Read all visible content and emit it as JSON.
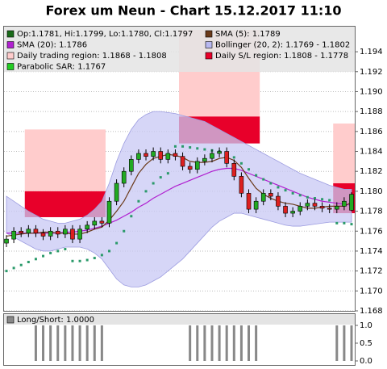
{
  "chart_data": {
    "type": "candlestick",
    "title": "Forex um Neun - Chart 15.12.2017 11:10",
    "legend": [
      {
        "label": "Op:1.1781, Hi:1.1799, Lo:1.1780, Cl:1.1797",
        "color": "#1a6b1a"
      },
      {
        "label": "SMA (5): 1.1789",
        "color": "#6b3a1a"
      },
      {
        "label": "SMA (20): 1.1786",
        "color": "#b020d0"
      },
      {
        "label": "Bollinger (20, 2): 1.1769 - 1.1802",
        "color": "#b8b8f0"
      },
      {
        "label": "Daily trading region: 1.1868 - 1.1808",
        "color": "#ffcccc"
      },
      {
        "label": "Daily S/L region: 1.1808 - 1.1778",
        "color": "#e8002a"
      },
      {
        "label": "Parabolic SAR: 1.1767",
        "color": "#22cc22"
      }
    ],
    "up_color": "#22aa22",
    "down_color": "#dd2020",
    "open": [
      1.1748,
      1.1752,
      1.176,
      1.1758,
      1.1762,
      1.1758,
      1.1755,
      1.176,
      1.1757,
      1.1762,
      1.1752,
      1.1762,
      1.1766,
      1.177,
      1.1768,
      1.179,
      1.1808,
      1.182,
      1.1832,
      1.1838,
      1.1835,
      1.184,
      1.1832,
      1.1838,
      1.1835,
      1.1825,
      1.1822,
      1.183,
      1.1833,
      1.1838,
      1.184,
      1.1828,
      1.1815,
      1.1798,
      1.1782,
      1.179,
      1.1798,
      1.1795,
      1.1785,
      1.1778,
      1.178,
      1.1785,
      1.1788,
      1.1785,
      1.1783,
      1.1782,
      1.1785,
      1.1781
    ],
    "high": [
      1.1756,
      1.1764,
      1.1764,
      1.1766,
      1.1766,
      1.1762,
      1.1764,
      1.1764,
      1.1766,
      1.1766,
      1.1766,
      1.177,
      1.1774,
      1.1774,
      1.1794,
      1.1812,
      1.1824,
      1.1836,
      1.1842,
      1.1842,
      1.1844,
      1.1844,
      1.1842,
      1.1842,
      1.1839,
      1.1829,
      1.1834,
      1.1837,
      1.1842,
      1.1844,
      1.1844,
      1.1832,
      1.1819,
      1.1802,
      1.1794,
      1.1802,
      1.1802,
      1.1799,
      1.1789,
      1.1784,
      1.1789,
      1.1792,
      1.1792,
      1.1789,
      1.1787,
      1.1789,
      1.1794,
      1.1799
    ],
    "low": [
      1.1744,
      1.1748,
      1.1754,
      1.1754,
      1.1754,
      1.1751,
      1.1751,
      1.1753,
      1.1753,
      1.1748,
      1.1748,
      1.1758,
      1.1762,
      1.1764,
      1.1764,
      1.1786,
      1.1804,
      1.1816,
      1.1828,
      1.1831,
      1.1831,
      1.1828,
      1.1828,
      1.1831,
      1.1821,
      1.1818,
      1.1818,
      1.1826,
      1.1829,
      1.1834,
      1.1824,
      1.1811,
      1.1794,
      1.1778,
      1.1778,
      1.1786,
      1.1791,
      1.1781,
      1.1774,
      1.1774,
      1.1776,
      1.1781,
      1.1781,
      1.1779,
      1.1778,
      1.1778,
      1.1781,
      1.178
    ],
    "close": [
      1.1752,
      1.176,
      1.1758,
      1.1762,
      1.1758,
      1.1755,
      1.176,
      1.1757,
      1.1762,
      1.1752,
      1.1762,
      1.1766,
      1.177,
      1.1768,
      1.179,
      1.1808,
      1.182,
      1.1832,
      1.1838,
      1.1835,
      1.184,
      1.1832,
      1.1838,
      1.1835,
      1.1825,
      1.1822,
      1.183,
      1.1833,
      1.1838,
      1.184,
      1.1828,
      1.1815,
      1.1798,
      1.1782,
      1.179,
      1.1798,
      1.1795,
      1.1785,
      1.1778,
      1.178,
      1.1785,
      1.1788,
      1.1785,
      1.1783,
      1.1782,
      1.1785,
      1.179,
      1.1797
    ],
    "sma5": {
      "color": "#6b3a1a",
      "values": [
        1.1755,
        1.1756,
        1.1757,
        1.1758,
        1.1758,
        1.1759,
        1.1759,
        1.1758,
        1.1758,
        1.1757,
        1.1757,
        1.1759,
        1.1762,
        1.1764,
        1.1771,
        1.178,
        1.179,
        1.1804,
        1.1818,
        1.1827,
        1.1833,
        1.1835,
        1.1837,
        1.1836,
        1.1834,
        1.183,
        1.1829,
        1.1829,
        1.183,
        1.1833,
        1.1834,
        1.1831,
        1.1824,
        1.1813,
        1.1803,
        1.1797,
        1.1793,
        1.179,
        1.1788,
        1.1787,
        1.1785,
        1.1783,
        1.1783,
        1.1784,
        1.1785,
        1.1785,
        1.1785,
        1.1789
      ]
    },
    "sma20": {
      "color": "#b020d0",
      "values": [
        1.1758,
        1.1758,
        1.1758,
        1.1758,
        1.1758,
        1.1758,
        1.1758,
        1.1758,
        1.1759,
        1.1759,
        1.176,
        1.1761,
        1.1763,
        1.1765,
        1.1768,
        1.1771,
        1.1775,
        1.1779,
        1.1784,
        1.1788,
        1.1793,
        1.1797,
        1.1801,
        1.1805,
        1.1808,
        1.1811,
        1.1814,
        1.1817,
        1.182,
        1.1822,
        1.1823,
        1.1823,
        1.1821,
        1.1818,
        1.1815,
        1.1812,
        1.1809,
        1.1806,
        1.1803,
        1.18,
        1.1797,
        1.1794,
        1.1792,
        1.179,
        1.1789,
        1.1788,
        1.1787,
        1.1786
      ]
    },
    "bollinger": {
      "color": "#c8c8f4",
      "upper": [
        1.1795,
        1.179,
        1.1785,
        1.178,
        1.1776,
        1.1772,
        1.177,
        1.1768,
        1.1768,
        1.177,
        1.1772,
        1.1776,
        1.1782,
        1.179,
        1.1808,
        1.183,
        1.1848,
        1.1862,
        1.1872,
        1.1877,
        1.188,
        1.188,
        1.1879,
        1.1878,
        1.1876,
        1.1874,
        1.1872,
        1.187,
        1.1866,
        1.1862,
        1.1858,
        1.1854,
        1.185,
        1.1846,
        1.1842,
        1.1838,
        1.1834,
        1.183,
        1.1826,
        1.1822,
        1.1818,
        1.1815,
        1.1812,
        1.1809,
        1.1806,
        1.1804,
        1.1802,
        1.1802
      ],
      "lower": [
        1.1758,
        1.1754,
        1.175,
        1.1746,
        1.1742,
        1.174,
        1.174,
        1.1742,
        1.1744,
        1.1744,
        1.1744,
        1.1742,
        1.1738,
        1.1732,
        1.1722,
        1.1712,
        1.1706,
        1.1704,
        1.1704,
        1.1706,
        1.171,
        1.1714,
        1.172,
        1.1726,
        1.1732,
        1.174,
        1.1748,
        1.1756,
        1.1764,
        1.177,
        1.1774,
        1.1778,
        1.1778,
        1.1776,
        1.1774,
        1.1772,
        1.177,
        1.1768,
        1.1766,
        1.1765,
        1.1765,
        1.1766,
        1.1767,
        1.1768,
        1.1769,
        1.1769,
        1.1769,
        1.1769
      ]
    },
    "sar": {
      "color": "#2a9a6a",
      "values": [
        1.172,
        1.1723,
        1.1726,
        1.1729,
        1.1732,
        1.1735,
        1.1738,
        1.174,
        1.1742,
        1.173,
        1.173,
        1.1731,
        1.1733,
        1.1736,
        1.174,
        1.1748,
        1.176,
        1.1775,
        1.179,
        1.18,
        1.1808,
        1.1814,
        1.1818,
        1.1845,
        1.1845,
        1.1844,
        1.1843,
        1.1842,
        1.1841,
        1.184,
        1.1838,
        1.1834,
        1.1828,
        1.1822,
        1.1816,
        1.1812,
        1.1808,
        1.1804,
        1.1801,
        1.1798,
        1.1796,
        1.1794,
        1.1793,
        1.1792,
        1.1791,
        1.1768,
        1.1768,
        1.1767
      ]
    },
    "trading_region": {
      "color": "#ffcccc",
      "regions": [
        {
          "start": 3,
          "end": 13,
          "high": 1.1862,
          "low": 1.18
        },
        {
          "start": 24,
          "end": 34,
          "high": 1.1962,
          "low": 1.1875
        },
        {
          "start": 45,
          "end": 47,
          "high": 1.1868,
          "low": 1.1808
        }
      ]
    },
    "sl_region": {
      "color": "#e8002a",
      "regions": [
        {
          "start": 3,
          "end": 13,
          "high": 1.18,
          "low": 1.1774
        },
        {
          "start": 24,
          "end": 34,
          "high": 1.1875,
          "low": 1.1848
        },
        {
          "start": 45,
          "end": 47,
          "high": 1.1808,
          "low": 1.1778
        }
      ]
    },
    "ylim": [
      1.168,
      1.1966
    ],
    "yticks": [
      1.168,
      {
        "value": 1.17,
        "label": "1.170"
      },
      1.172,
      1.174,
      1.176,
      1.178,
      {
        "value": 1.18,
        "label": "1.180"
      },
      1.182,
      1.184,
      1.186,
      1.188,
      {
        "value": 1.19,
        "label": "1.190"
      },
      1.192,
      1.194
    ],
    "grid": true,
    "long_short": {
      "legend": "Long/Short: 1.0000",
      "color": "#888888",
      "values": [
        0,
        0,
        0,
        0,
        1,
        1,
        1,
        1,
        1,
        1,
        1,
        1,
        1,
        1,
        0,
        0,
        0,
        0,
        0,
        0,
        0,
        0,
        0,
        0,
        0,
        1,
        1,
        1,
        1,
        1,
        1,
        1,
        1,
        1,
        1,
        0,
        0,
        0,
        0,
        0,
        0,
        0,
        0,
        0,
        0,
        1,
        1,
        1
      ],
      "ylim": [
        0,
        1
      ],
      "yticks": [
        {
          "value": 0,
          "label": "0.0"
        },
        {
          "value": 0.5,
          "label": "0.5"
        },
        {
          "value": 1,
          "label": "1.0"
        }
      ]
    }
  }
}
